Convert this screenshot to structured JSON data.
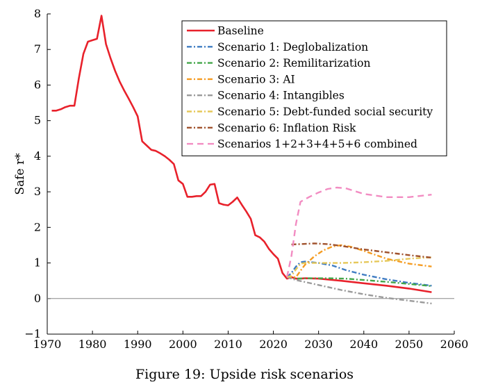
{
  "caption": "Figure 19: Upside risk scenarios",
  "chart_data": {
    "type": "line",
    "title": "",
    "xlabel": "",
    "ylabel": "Safe r*",
    "xlim": [
      1970,
      2060
    ],
    "ylim": [
      -1,
      8
    ],
    "xticks": [
      1970,
      1980,
      1990,
      2000,
      2010,
      2020,
      2030,
      2040,
      2050,
      2060
    ],
    "yticks": [
      -1,
      0,
      1,
      2,
      3,
      4,
      5,
      6,
      7,
      8
    ],
    "legend_position": "top-right",
    "reference_line": 0,
    "series": [
      {
        "name": "Baseline",
        "color": "#e8212b",
        "style": "solid",
        "points": [
          [
            1971,
            5.28
          ],
          [
            1972,
            5.28
          ],
          [
            1973,
            5.32
          ],
          [
            1974,
            5.38
          ],
          [
            1975,
            5.42
          ],
          [
            1976,
            5.42
          ],
          [
            1977,
            6.2
          ],
          [
            1978,
            6.88
          ],
          [
            1979,
            7.22
          ],
          [
            1980,
            7.26
          ],
          [
            1981,
            7.3
          ],
          [
            1982,
            7.95
          ],
          [
            1983,
            7.15
          ],
          [
            1984,
            6.75
          ],
          [
            1985,
            6.4
          ],
          [
            1986,
            6.1
          ],
          [
            1987,
            5.85
          ],
          [
            1988,
            5.62
          ],
          [
            1989,
            5.38
          ],
          [
            1990,
            5.12
          ],
          [
            1991,
            4.42
          ],
          [
            1992,
            4.3
          ],
          [
            1993,
            4.18
          ],
          [
            1994,
            4.15
          ],
          [
            1995,
            4.08
          ],
          [
            1996,
            4.0
          ],
          [
            1997,
            3.9
          ],
          [
            1998,
            3.78
          ],
          [
            1999,
            3.32
          ],
          [
            2000,
            3.22
          ],
          [
            2001,
            2.86
          ],
          [
            2002,
            2.86
          ],
          [
            2003,
            2.88
          ],
          [
            2004,
            2.88
          ],
          [
            2005,
            3.0
          ],
          [
            2006,
            3.2
          ],
          [
            2007,
            3.22
          ],
          [
            2008,
            2.68
          ],
          [
            2009,
            2.64
          ],
          [
            2010,
            2.62
          ],
          [
            2011,
            2.72
          ],
          [
            2012,
            2.84
          ],
          [
            2013,
            2.64
          ],
          [
            2014,
            2.45
          ],
          [
            2015,
            2.24
          ],
          [
            2016,
            1.78
          ],
          [
            2017,
            1.72
          ],
          [
            2018,
            1.6
          ],
          [
            2019,
            1.4
          ],
          [
            2020,
            1.25
          ],
          [
            2021,
            1.12
          ],
          [
            2022,
            0.72
          ],
          [
            2023,
            0.56
          ],
          [
            2024,
            0.6
          ],
          [
            2025,
            0.56
          ],
          [
            2026,
            0.56
          ],
          [
            2027,
            0.57
          ],
          [
            2030,
            0.56
          ],
          [
            2035,
            0.5
          ],
          [
            2040,
            0.43
          ],
          [
            2045,
            0.36
          ],
          [
            2050,
            0.28
          ],
          [
            2055,
            0.18
          ]
        ]
      },
      {
        "name": "Scenario 1:  Deglobalization",
        "color": "#3f7cc2",
        "style": "dashdot",
        "points": [
          [
            2023,
            0.6
          ],
          [
            2024,
            0.72
          ],
          [
            2025,
            0.9
          ],
          [
            2026,
            1.02
          ],
          [
            2027,
            1.04
          ],
          [
            2030,
            1.0
          ],
          [
            2033,
            0.93
          ],
          [
            2036,
            0.8
          ],
          [
            2040,
            0.67
          ],
          [
            2045,
            0.54
          ],
          [
            2050,
            0.44
          ],
          [
            2055,
            0.36
          ]
        ]
      },
      {
        "name": "Scenario 2:  Remilitarization",
        "color": "#43a64a",
        "style": "dashdot",
        "points": [
          [
            2023,
            0.6
          ],
          [
            2025,
            0.56
          ],
          [
            2028,
            0.57
          ],
          [
            2032,
            0.57
          ],
          [
            2036,
            0.56
          ],
          [
            2040,
            0.52
          ],
          [
            2045,
            0.47
          ],
          [
            2050,
            0.41
          ],
          [
            2055,
            0.35
          ]
        ]
      },
      {
        "name": "Scenario 3:  AI",
        "color": "#f59c22",
        "style": "dashdot",
        "points": [
          [
            2023,
            0.6
          ],
          [
            2025,
            0.6
          ],
          [
            2026,
            0.78
          ],
          [
            2027,
            0.95
          ],
          [
            2029,
            1.18
          ],
          [
            2031,
            1.35
          ],
          [
            2033,
            1.46
          ],
          [
            2035,
            1.5
          ],
          [
            2037,
            1.46
          ],
          [
            2040,
            1.34
          ],
          [
            2045,
            1.12
          ],
          [
            2050,
            0.98
          ],
          [
            2055,
            0.9
          ]
        ]
      },
      {
        "name": "Scenario 4:  Intangibles",
        "color": "#9a9a9a",
        "style": "dashdot",
        "points": [
          [
            2023,
            0.6
          ],
          [
            2025,
            0.52
          ],
          [
            2030,
            0.38
          ],
          [
            2035,
            0.24
          ],
          [
            2040,
            0.12
          ],
          [
            2045,
            0.02
          ],
          [
            2050,
            -0.06
          ],
          [
            2055,
            -0.14
          ]
        ]
      },
      {
        "name": "Scenario 5:  Debt-funded social security",
        "color": "#e6c85a",
        "style": "dashdot",
        "points": [
          [
            2023,
            0.6
          ],
          [
            2024,
            0.64
          ],
          [
            2025,
            0.82
          ],
          [
            2026,
            0.98
          ],
          [
            2027,
            1.0
          ],
          [
            2030,
            1.0
          ],
          [
            2035,
            1.0
          ],
          [
            2040,
            1.02
          ],
          [
            2045,
            1.06
          ],
          [
            2050,
            1.12
          ],
          [
            2055,
            1.16
          ]
        ]
      },
      {
        "name": "Scenario 6:  Inflation Risk",
        "color": "#a0522d",
        "style": "dashdot",
        "points": [
          [
            2024,
            1.52
          ],
          [
            2026,
            1.53
          ],
          [
            2029,
            1.55
          ],
          [
            2032,
            1.53
          ],
          [
            2035,
            1.48
          ],
          [
            2040,
            1.38
          ],
          [
            2045,
            1.3
          ],
          [
            2050,
            1.22
          ],
          [
            2055,
            1.15
          ]
        ]
      },
      {
        "name": "Scenarios 1+2+3+4+5+6 combined",
        "color": "#f28cc2",
        "style": "dashed",
        "points": [
          [
            2023,
            0.6
          ],
          [
            2024,
            1.2
          ],
          [
            2025,
            2.1
          ],
          [
            2026,
            2.72
          ],
          [
            2028,
            2.86
          ],
          [
            2030,
            2.98
          ],
          [
            2032,
            3.08
          ],
          [
            2034,
            3.12
          ],
          [
            2036,
            3.1
          ],
          [
            2040,
            2.94
          ],
          [
            2045,
            2.85
          ],
          [
            2050,
            2.85
          ],
          [
            2055,
            2.92
          ]
        ]
      }
    ]
  }
}
